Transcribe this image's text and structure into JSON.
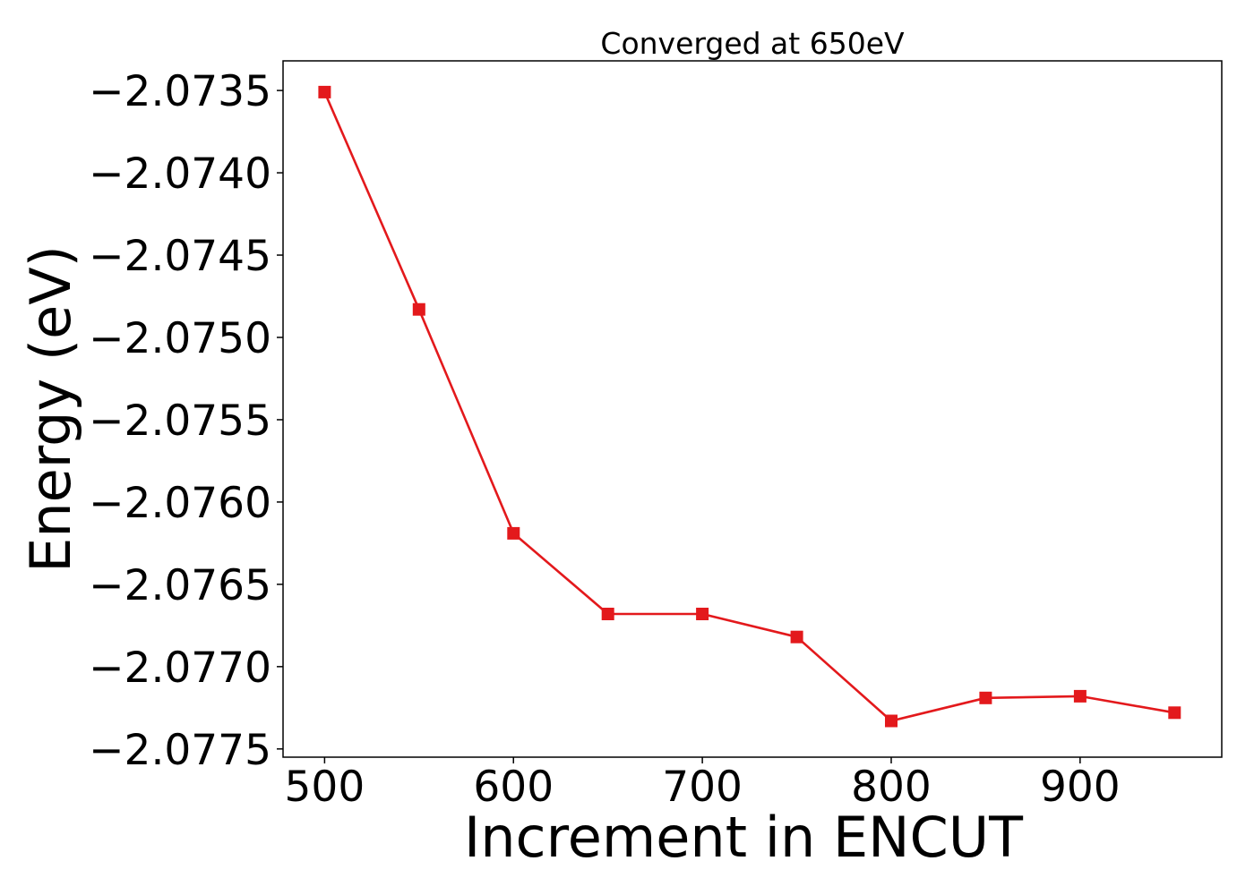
{
  "chart_data": {
    "type": "line",
    "title": "Converged at 650eV",
    "xlabel": "Increment in ENCUT",
    "ylabel": "Energy (eV)",
    "xlim": [
      478,
      975
    ],
    "ylim": [
      -2.07755,
      -2.07332
    ],
    "x_ticks": [
      500,
      600,
      700,
      800,
      900
    ],
    "x_tick_labels": [
      "500",
      "600",
      "700",
      "800",
      "900"
    ],
    "y_ticks": [
      -2.0735,
      -2.074,
      -2.0745,
      -2.075,
      -2.0755,
      -2.076,
      -2.0765,
      -2.077,
      -2.0775
    ],
    "y_tick_labels": [
      "−2.0735",
      "−2.0740",
      "−2.0745",
      "−2.0750",
      "−2.0755",
      "−2.0760",
      "−2.0765",
      "−2.0770",
      "−2.0775"
    ],
    "grid": false,
    "series": [
      {
        "color": "#e3191c",
        "marker": "square",
        "x": [
          500,
          550,
          600,
          650,
          700,
          750,
          800,
          850,
          900,
          950
        ],
        "y": [
          -2.07351,
          -2.07483,
          -2.07619,
          -2.07668,
          -2.07668,
          -2.07682,
          -2.07733,
          -2.07719,
          -2.07718,
          -2.07728
        ]
      }
    ]
  }
}
